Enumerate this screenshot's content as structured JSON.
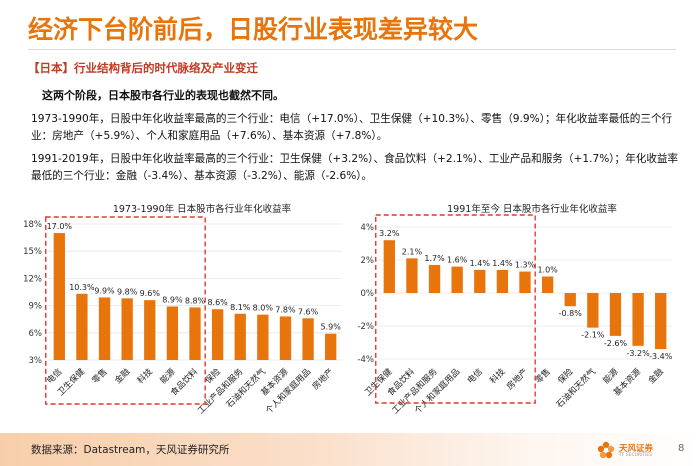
{
  "header": {
    "title": "经济下台阶前后，日股行业表现差异较大",
    "subtitle": "【日本】行业结构背后的时代脉络及产业变迁"
  },
  "body": {
    "intro": "这两个阶段，日本股市各行业的表现也截然不同。",
    "para1": "1973-1990年，日股中年化收益率最高的三个行业：电信（+17.0%）、卫生保健（+10.3%）、零售（9.9%）；年化收益率最低的三个行业：房地产（+5.9%）、个人和家庭用品（+7.6%）、基本资源（+7.8%）。",
    "para2": "1991-2019年，日股中年化收益率最高的三个行业：卫生保健（+3.2%）、食品饮料（+2.1%）、工业产品和服务（+1.7%）；年化收益率最低的三个行业：金融（-3.4%）、基本资源（-3.2%）、能源（-2.6%）。"
  },
  "colors": {
    "accent": "#e8740c",
    "highlight": "#c23b22",
    "bar": "#e8740c",
    "box": "#e03a2f"
  },
  "chart_data": [
    {
      "type": "bar",
      "title": "1973-1990年 日本股市各行业年化收益率",
      "categories": [
        "电信",
        "卫生保健",
        "零售",
        "金融",
        "科技",
        "能源",
        "食品饮料",
        "保险",
        "工业产品和服务",
        "石油和天然气",
        "基本资源",
        "个人和家庭用品",
        "房地产"
      ],
      "values": [
        17.0,
        10.3,
        9.9,
        9.8,
        9.6,
        8.9,
        8.8,
        8.6,
        8.1,
        8.0,
        7.8,
        7.6,
        5.9
      ],
      "data_labels": [
        "17.0%",
        "10.3%",
        "9.9%",
        "9.8%",
        "9.6%",
        "8.9%",
        "8.8%",
        "8.6%",
        "8.1%",
        "8.0%",
        "7.8%",
        "7.6%",
        "5.9%"
      ],
      "yticks": [
        3,
        6,
        9,
        12,
        15,
        18
      ],
      "ytick_labels": [
        "3%",
        "6%",
        "9%",
        "12%",
        "15%",
        "18%"
      ],
      "ylim": [
        3,
        18
      ],
      "highlight_first_n": 7,
      "xlabel": "",
      "ylabel": ""
    },
    {
      "type": "bar",
      "title": "1991年至今 日本股市各行业年化收益率",
      "categories": [
        "卫生保健",
        "食品饮料",
        "工业产品和服务",
        "个人和家庭用品",
        "电信",
        "科技",
        "房地产",
        "零售",
        "保险",
        "石油和天然气",
        "能源",
        "基本资源",
        "金融"
      ],
      "values": [
        3.2,
        2.1,
        1.7,
        1.6,
        1.4,
        1.4,
        1.3,
        1.0,
        -0.8,
        -2.1,
        -2.6,
        -3.2,
        -3.4
      ],
      "data_labels": [
        "3.2%",
        "2.1%",
        "1.7%",
        "1.6%",
        "1.4%",
        "1.4%",
        "1.3%",
        "1.0%",
        "-0.8%",
        "-2.1%",
        "-2.6%",
        "-3.2%",
        "-3.4%"
      ],
      "yticks": [
        -4,
        -2,
        0,
        2,
        4
      ],
      "ytick_labels": [
        "-4%",
        "-2%",
        "0%",
        "2%",
        "4%"
      ],
      "ylim": [
        -4,
        4
      ],
      "highlight_first_n": 7,
      "xlabel": "",
      "ylabel": ""
    }
  ],
  "footer": {
    "source": "数据来源：Datastream，天风证券研究所",
    "logo_text": "天风证券",
    "logo_sub": "TF SECURITIES",
    "page_number": "8"
  }
}
